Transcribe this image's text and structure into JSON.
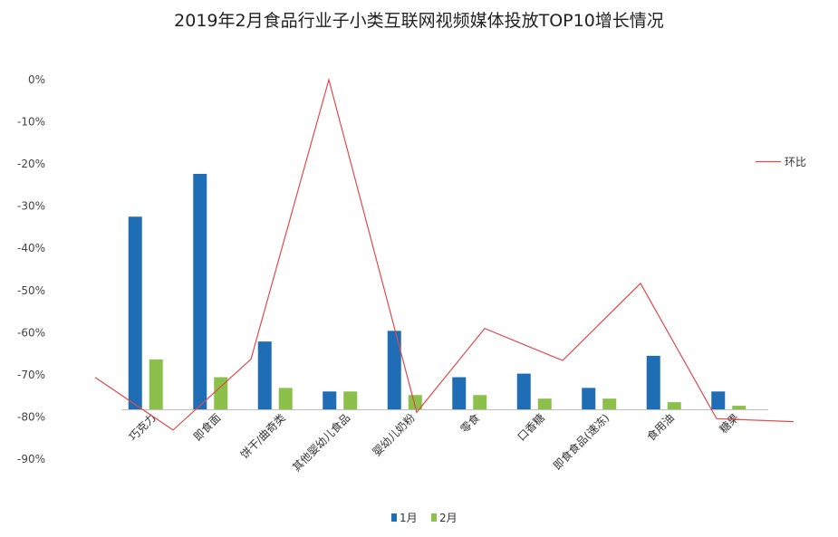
{
  "chart_data": {
    "type": "bar",
    "title": "2019年2月食品行业子小类互联网视频媒体投放TOP10增长情况",
    "categories": [
      "巧克力",
      "即食面",
      "饼干/曲奇类",
      "其他婴幼儿食品",
      "婴幼儿奶粉",
      "零食",
      "口香糖",
      "即食食品(速冻)",
      "食用油",
      "糖果"
    ],
    "series": [
      {
        "name": "1月",
        "type": "bar",
        "color": "#1f6db5",
        "values": [
          54,
          66,
          19,
          5,
          22,
          9,
          10,
          6,
          15,
          5
        ]
      },
      {
        "name": "2月",
        "type": "bar",
        "color": "#8cc04b",
        "values": [
          14,
          9,
          6,
          5,
          4,
          4,
          3,
          3,
          2,
          1
        ]
      },
      {
        "name": "环比",
        "type": "line",
        "color": "#e04a4a",
        "values": [
          -70.6,
          -83.1,
          -66.3,
          0,
          -78.9,
          -59.0,
          -66.6,
          -48.3,
          -80.4,
          -81.1
        ]
      }
    ],
    "ylim": [
      -90,
      0
    ],
    "yticks": [
      "0%",
      "-10%",
      "-20%",
      "-30%",
      "-40%",
      "-50%",
      "-60%",
      "-70%",
      "-80%",
      "-90%"
    ],
    "xlabel": "",
    "ylabel": "",
    "legend": {
      "bars": [
        "1月",
        "2月"
      ],
      "line": "环比",
      "bars_position": "bottom",
      "line_position": "right"
    }
  }
}
